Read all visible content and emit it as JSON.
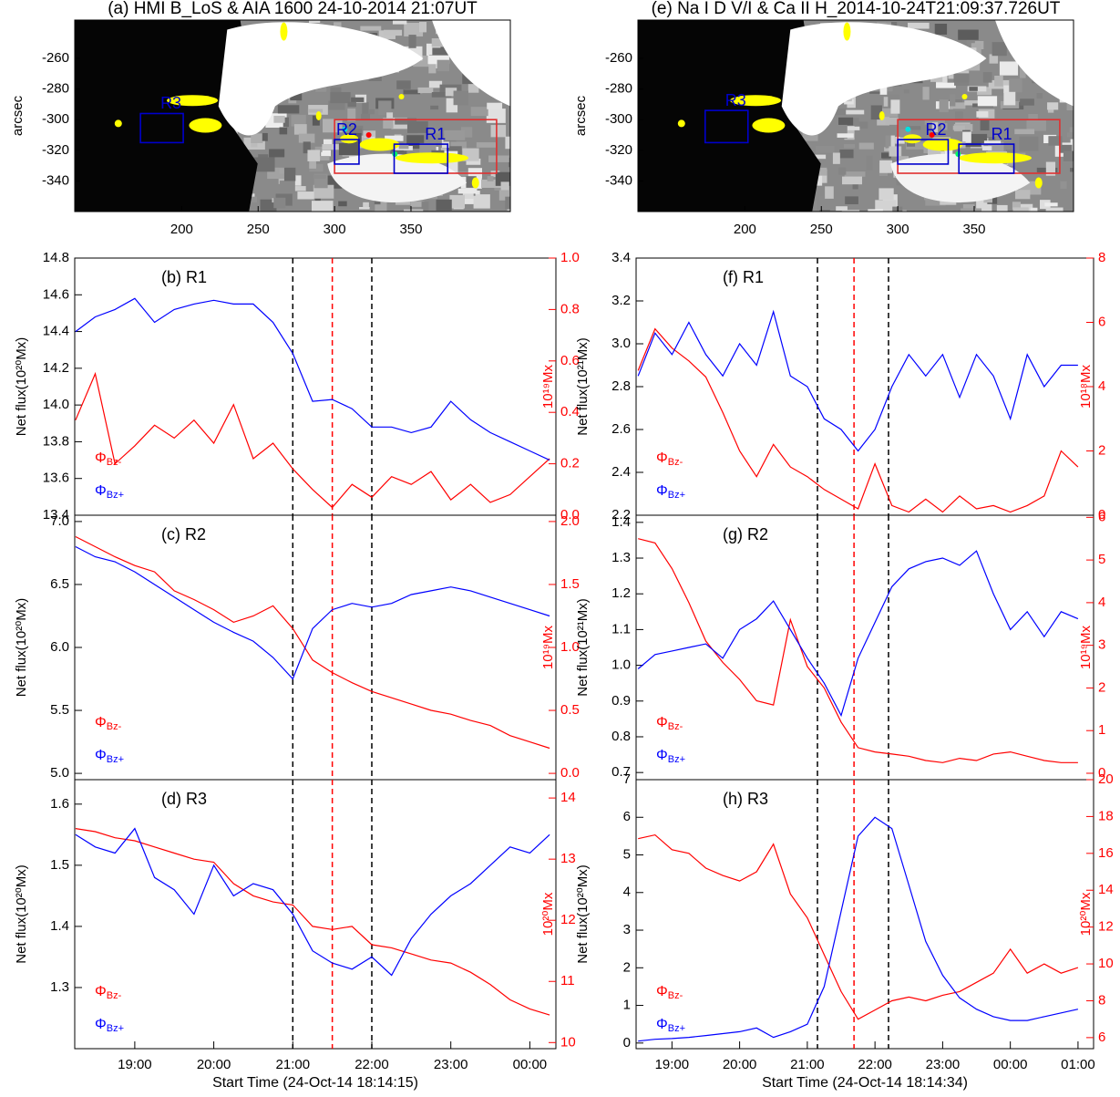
{
  "chart_data": [
    {
      "type": "image",
      "title": "(a) HMI B_LoS & AIA 1600 24-10-2014 21:07UT",
      "ylabel": "arcsec",
      "xlim": [
        130,
        415
      ],
      "xticks": [
        200,
        250,
        300,
        350
      ],
      "ylim": [
        -360,
        -235
      ],
      "yticks": [
        -340,
        -320,
        -300,
        -280,
        -260
      ],
      "regions": [
        {
          "color": "#e03030",
          "x": [
            300,
            406
          ],
          "y": [
            -300,
            -335
          ]
        },
        {
          "name": "R1",
          "color": "#0000cc",
          "x": [
            339,
            374
          ],
          "y": [
            -316,
            -335
          ]
        },
        {
          "name": "R2",
          "color": "#0000cc",
          "x": [
            300,
            316
          ],
          "y": [
            -313,
            -329
          ]
        },
        {
          "name": "R3",
          "color": "#0000cc",
          "x": [
            173,
            201
          ],
          "y": [
            -296,
            -315
          ]
        }
      ]
    },
    {
      "type": "line",
      "label": "(b) R1",
      "ylabel": "Net flux(10²⁰Mx)",
      "y2label": "10¹⁹Mx",
      "xlim": [
        18.24,
        24.33
      ],
      "ylim": [
        13.4,
        14.8
      ],
      "yticks": [
        13.4,
        13.6,
        13.8,
        {
          "value": 14,
          "label": "14.0"
        },
        14.2,
        14.4,
        14.6,
        14.8
      ],
      "y2lim": [
        0,
        1
      ],
      "y2ticks": [
        {
          "value": 0,
          "label": "0.0"
        },
        0.2,
        0.4,
        0.6,
        0.8,
        {
          "value": 1,
          "label": "1.0"
        }
      ],
      "vlines": [
        {
          "x": 21.0,
          "color": "#000000"
        },
        {
          "x": 21.5,
          "color": "#ff0000"
        },
        {
          "x": 22.0,
          "color": "#000000"
        }
      ],
      "x": [
        18.25,
        18.5,
        18.75,
        19,
        19.25,
        19.5,
        19.75,
        20,
        20.25,
        20.5,
        20.75,
        21,
        21.25,
        21.5,
        21.75,
        22,
        22.25,
        22.5,
        22.75,
        23,
        23.25,
        23.5,
        23.75,
        24,
        24.25
      ],
      "series": [
        {
          "name": "ΦBz-",
          "color": "#ff0000",
          "axis": "y2",
          "values": [
            0.37,
            0.55,
            0.2,
            0.27,
            0.35,
            0.3,
            0.37,
            0.28,
            0.43,
            0.22,
            0.28,
            0.18,
            0.1,
            0.03,
            0.12,
            0.07,
            0.15,
            0.12,
            0.17,
            0.06,
            0.12,
            0.05,
            0.08,
            0.15,
            0.22
          ]
        },
        {
          "name": "ΦBz+",
          "color": "#0000ff",
          "values": [
            14.4,
            14.48,
            14.52,
            14.58,
            14.45,
            14.52,
            14.55,
            14.57,
            14.55,
            14.55,
            14.45,
            14.28,
            14.02,
            14.03,
            13.98,
            13.88,
            13.88,
            13.85,
            13.88,
            14.02,
            13.92,
            13.85,
            13.8,
            13.75,
            13.7
          ]
        }
      ]
    },
    {
      "type": "line",
      "label": "(c) R2",
      "ylabel": "Net flux(10²⁰Mx)",
      "y2label": "10¹⁹Mx",
      "xlim": [
        18.24,
        24.33
      ],
      "ylim": [
        4.95,
        7.05
      ],
      "yticks": [
        {
          "value": 5,
          "label": "5.0"
        },
        5.5,
        {
          "value": 6,
          "label": "6.0"
        },
        6.5,
        {
          "value": 7,
          "label": "7.0"
        }
      ],
      "y2lim": [
        -0.05,
        2.05
      ],
      "y2ticks": [
        {
          "value": 0,
          "label": "0.0"
        },
        0.5,
        {
          "value": 1,
          "label": "1.0"
        },
        1.5,
        {
          "value": 2,
          "label": "2.0"
        }
      ],
      "vlines": [
        {
          "x": 21.0,
          "color": "#000000"
        },
        {
          "x": 21.5,
          "color": "#ff0000"
        },
        {
          "x": 22.0,
          "color": "#000000"
        }
      ],
      "x": [
        18.25,
        18.5,
        18.75,
        19,
        19.25,
        19.5,
        19.75,
        20,
        20.25,
        20.5,
        20.75,
        21,
        21.25,
        21.5,
        21.75,
        22,
        22.25,
        22.5,
        22.75,
        23,
        23.25,
        23.5,
        23.75,
        24,
        24.25
      ],
      "series": [
        {
          "name": "ΦBz-",
          "color": "#ff0000",
          "axis": "y2",
          "values": [
            1.88,
            1.8,
            1.72,
            1.65,
            1.6,
            1.45,
            1.38,
            1.3,
            1.2,
            1.25,
            1.33,
            1.15,
            0.9,
            0.8,
            0.72,
            0.65,
            0.6,
            0.55,
            0.5,
            0.47,
            0.42,
            0.38,
            0.3,
            0.25,
            0.2
          ]
        },
        {
          "name": "ΦBz+",
          "color": "#0000ff",
          "values": [
            6.8,
            6.72,
            6.68,
            6.6,
            6.5,
            6.4,
            6.3,
            6.2,
            6.12,
            6.05,
            5.92,
            5.75,
            6.15,
            6.3,
            6.35,
            6.32,
            6.35,
            6.42,
            6.45,
            6.48,
            6.45,
            6.4,
            6.35,
            6.3,
            6.25
          ]
        }
      ]
    },
    {
      "type": "line",
      "label": "(d) R3",
      "ylabel": "Net flux(10²⁰Mx)",
      "y2label": "10²⁰Mx",
      "xlabel": "Start Time (24-Oct-14 18:14:15)",
      "xlim": [
        18.24,
        24.33
      ],
      "xticks": [
        {
          "value": 19,
          "label": "19:00"
        },
        {
          "value": 20,
          "label": "20:00"
        },
        {
          "value": 21,
          "label": "21:00"
        },
        {
          "value": 22,
          "label": "22:00"
        },
        {
          "value": 23,
          "label": "23:00"
        },
        {
          "value": 24,
          "label": "00:00"
        }
      ],
      "ylim": [
        1.2,
        1.64
      ],
      "yticks": [
        1.3,
        1.4,
        1.5,
        1.6
      ],
      "y2lim": [
        9.9,
        14.3
      ],
      "y2ticks": [
        10,
        11,
        12,
        13,
        14
      ],
      "vlines": [
        {
          "x": 21.0,
          "color": "#000000"
        },
        {
          "x": 21.5,
          "color": "#ff0000"
        },
        {
          "x": 22.0,
          "color": "#000000"
        }
      ],
      "x": [
        18.25,
        18.5,
        18.75,
        19,
        19.25,
        19.5,
        19.75,
        20,
        20.25,
        20.5,
        20.75,
        21,
        21.25,
        21.5,
        21.75,
        22,
        22.25,
        22.5,
        22.75,
        23,
        23.25,
        23.5,
        23.75,
        24,
        24.25
      ],
      "series": [
        {
          "name": "ΦBz-",
          "color": "#ff0000",
          "axis": "y2",
          "values": [
            13.5,
            13.45,
            13.35,
            13.3,
            13.2,
            13.1,
            13.0,
            12.95,
            12.6,
            12.4,
            12.3,
            12.25,
            11.9,
            11.85,
            11.9,
            11.6,
            11.55,
            11.45,
            11.35,
            11.3,
            11.15,
            10.95,
            10.7,
            10.55,
            10.45
          ]
        },
        {
          "name": "ΦBz+",
          "color": "#0000ff",
          "values": [
            1.55,
            1.53,
            1.52,
            1.56,
            1.48,
            1.46,
            1.42,
            1.5,
            1.45,
            1.47,
            1.46,
            1.42,
            1.36,
            1.34,
            1.33,
            1.35,
            1.32,
            1.38,
            1.42,
            1.45,
            1.47,
            1.5,
            1.53,
            1.52,
            1.55
          ]
        }
      ]
    },
    {
      "type": "image",
      "title": "(e) Na I D V/I & Ca II H_2014-10-24T21:09:37.726UT",
      "ylabel": "arcsec",
      "xlim": [
        130,
        415
      ],
      "xticks": [
        200,
        250,
        300,
        350
      ],
      "ylim": [
        -360,
        -235
      ],
      "yticks": [
        -340,
        -320,
        -300,
        -280,
        -260
      ],
      "regions": [
        {
          "color": "#e03030",
          "x": [
            300,
            406
          ],
          "y": [
            -300,
            -335
          ]
        },
        {
          "name": "R1",
          "color": "#0000cc",
          "x": [
            340,
            376
          ],
          "y": [
            -316,
            -335
          ]
        },
        {
          "name": "R2",
          "color": "#0000cc",
          "x": [
            300,
            333
          ],
          "y": [
            -313,
            -329
          ]
        },
        {
          "name": "R3",
          "color": "#0000cc",
          "x": [
            174,
            202
          ],
          "y": [
            -294,
            -315
          ]
        }
      ]
    },
    {
      "type": "line",
      "label": "(f) R1",
      "ylabel": "Net flux(10²¹Mx)",
      "y2label": "10¹⁸Mx",
      "xlim": [
        18.47,
        25.23
      ],
      "ylim": [
        2.2,
        3.4
      ],
      "yticks": [
        2.2,
        2.4,
        2.6,
        2.8,
        {
          "value": 3,
          "label": "3.0"
        },
        3.2,
        3.4
      ],
      "y2lim": [
        0,
        8
      ],
      "y2ticks": [
        0,
        2,
        4,
        6,
        8
      ],
      "vlines": [
        {
          "x": 21.15,
          "color": "#000000"
        },
        {
          "x": 21.69,
          "color": "#ff0000"
        },
        {
          "x": 22.2,
          "color": "#000000"
        }
      ],
      "x": [
        18.5,
        18.75,
        19,
        19.25,
        19.5,
        19.75,
        20,
        20.25,
        20.5,
        20.75,
        21,
        21.25,
        21.5,
        21.75,
        22,
        22.25,
        22.5,
        22.75,
        23,
        23.25,
        23.5,
        23.75,
        24,
        24.25,
        24.5,
        24.75,
        25
      ],
      "series": [
        {
          "name": "ΦBz-",
          "color": "#ff0000",
          "axis": "y2",
          "values": [
            4.5,
            5.8,
            5.2,
            4.8,
            4.3,
            3.2,
            2.0,
            1.2,
            2.2,
            1.5,
            1.2,
            0.8,
            0.5,
            0.2,
            1.6,
            0.3,
            0.1,
            0.5,
            0.1,
            0.6,
            0.2,
            0.3,
            0.1,
            0.3,
            0.6,
            2.0,
            1.5
          ]
        },
        {
          "name": "ΦBz+",
          "color": "#0000ff",
          "values": [
            2.85,
            3.05,
            2.95,
            3.1,
            2.95,
            2.85,
            3.0,
            2.9,
            3.15,
            2.85,
            2.8,
            2.65,
            2.6,
            2.5,
            2.6,
            2.8,
            2.95,
            2.85,
            2.95,
            2.75,
            2.95,
            2.85,
            2.65,
            2.95,
            2.8,
            2.9,
            2.9
          ]
        }
      ]
    },
    {
      "type": "line",
      "label": "(g) R2",
      "ylabel": "Net flux(10²¹Mx)",
      "y2label": "10¹⁹Mx",
      "xlim": [
        18.47,
        25.23
      ],
      "ylim": [
        0.68,
        1.42
      ],
      "yticks": [
        0.7,
        0.8,
        0.9,
        {
          "value": 1,
          "label": "1.0"
        },
        1.1,
        1.2,
        1.3,
        1.4
      ],
      "y2lim": [
        -0.15,
        6.05
      ],
      "y2ticks": [
        0,
        1,
        2,
        3,
        4,
        5,
        6
      ],
      "vlines": [
        {
          "x": 21.15,
          "color": "#000000"
        },
        {
          "x": 21.69,
          "color": "#ff0000"
        },
        {
          "x": 22.2,
          "color": "#000000"
        }
      ],
      "x": [
        18.5,
        18.75,
        19,
        19.25,
        19.5,
        19.75,
        20,
        20.25,
        20.5,
        20.75,
        21,
        21.25,
        21.5,
        21.75,
        22,
        22.25,
        22.5,
        22.75,
        23,
        23.25,
        23.5,
        23.75,
        24,
        24.25,
        24.5,
        24.75,
        25
      ],
      "series": [
        {
          "name": "ΦBz-",
          "color": "#ff0000",
          "axis": "y2",
          "values": [
            5.5,
            5.4,
            4.8,
            4.0,
            3.1,
            2.6,
            2.2,
            1.7,
            1.6,
            3.6,
            2.5,
            2.0,
            1.2,
            0.6,
            0.5,
            0.45,
            0.4,
            0.3,
            0.25,
            0.35,
            0.3,
            0.45,
            0.5,
            0.4,
            0.3,
            0.25,
            0.25
          ]
        },
        {
          "name": "ΦBz+",
          "color": "#0000ff",
          "values": [
            0.99,
            1.03,
            1.04,
            1.05,
            1.06,
            1.02,
            1.1,
            1.13,
            1.18,
            1.1,
            1.02,
            0.95,
            0.86,
            1.02,
            1.12,
            1.22,
            1.27,
            1.29,
            1.3,
            1.28,
            1.32,
            1.2,
            1.1,
            1.15,
            1.08,
            1.15,
            1.13
          ]
        }
      ]
    },
    {
      "type": "line",
      "label": "(h) R3",
      "ylabel": "Net flux(10²⁰Mx)",
      "y2label": "10²⁰Mx",
      "xlabel": "Start Time (24-Oct-14 18:14:34)",
      "xlim": [
        18.47,
        25.23
      ],
      "xticks": [
        {
          "value": 19,
          "label": "19:00"
        },
        {
          "value": 20,
          "label": "20:00"
        },
        {
          "value": 21,
          "label": "21:00"
        },
        {
          "value": 22,
          "label": "22:00"
        },
        {
          "value": 23,
          "label": "23:00"
        },
        {
          "value": 24,
          "label": "00:00"
        },
        {
          "value": 25,
          "label": "01:00"
        }
      ],
      "ylim": [
        -0.15,
        7
      ],
      "yticks": [
        0,
        1,
        2,
        3,
        4,
        5,
        6,
        7
      ],
      "y2lim": [
        5.4,
        20
      ],
      "y2ticks": [
        6,
        8,
        10,
        12,
        14,
        16,
        18,
        20
      ],
      "vlines": [
        {
          "x": 21.15,
          "color": "#000000"
        },
        {
          "x": 21.69,
          "color": "#ff0000"
        },
        {
          "x": 22.2,
          "color": "#000000"
        }
      ],
      "x": [
        18.5,
        18.75,
        19,
        19.25,
        19.5,
        19.75,
        20,
        20.25,
        20.5,
        20.75,
        21,
        21.25,
        21.5,
        21.75,
        22,
        22.25,
        22.5,
        22.75,
        23,
        23.25,
        23.5,
        23.75,
        24,
        24.25,
        24.5,
        24.75,
        25
      ],
      "series": [
        {
          "name": "ΦBz-",
          "color": "#ff0000",
          "axis": "y2",
          "values": [
            16.8,
            17.0,
            16.2,
            16.0,
            15.2,
            14.8,
            14.5,
            15.0,
            16.5,
            13.8,
            12.5,
            10.5,
            8.5,
            7.0,
            7.5,
            8.0,
            8.2,
            8.0,
            8.3,
            8.5,
            9.0,
            9.5,
            10.8,
            9.5,
            10.0,
            9.5,
            9.8
          ]
        },
        {
          "name": "ΦBz+",
          "color": "#0000ff",
          "values": [
            0.05,
            0.1,
            0.12,
            0.15,
            0.2,
            0.25,
            0.3,
            0.4,
            0.15,
            0.3,
            0.5,
            1.5,
            3.5,
            5.5,
            6.0,
            5.7,
            4.2,
            2.7,
            1.8,
            1.2,
            0.9,
            0.7,
            0.6,
            0.6,
            0.7,
            0.8,
            0.9
          ]
        }
      ]
    }
  ]
}
